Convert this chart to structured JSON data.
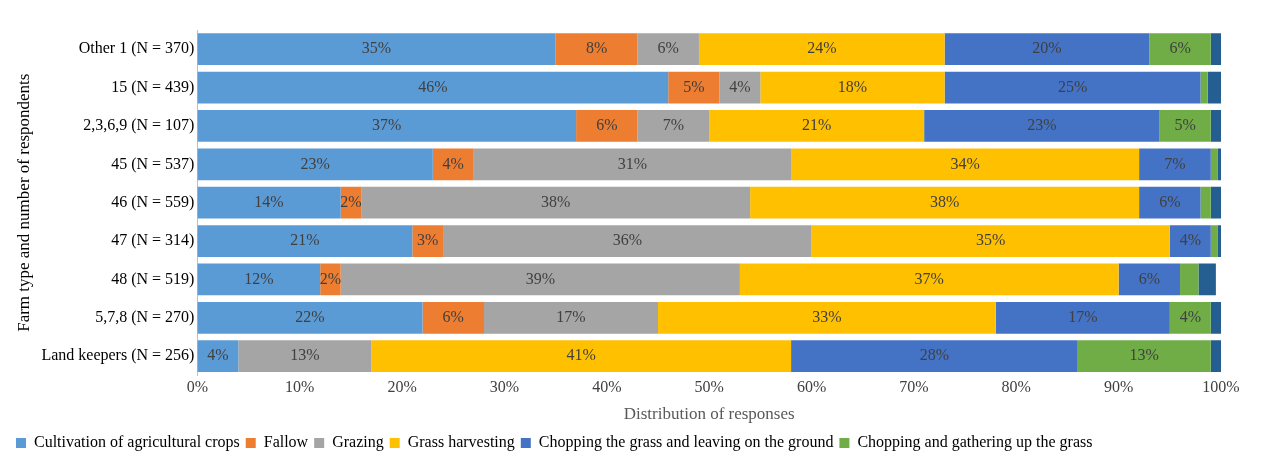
{
  "chart_data": {
    "type": "bar",
    "orientation": "horizontal",
    "stacked": true,
    "xlabel": "Distribution of responses",
    "ylabel": "Farm type and number of respondents",
    "categories": [
      "Other 1 (N = 370)",
      "15 (N = 439)",
      "2,3,6,9 (N = 107)",
      "45 (N = 537)",
      "46 (N = 559)",
      "47 (N = 314)",
      "48 (N = 519)",
      "5,7,8 (N = 270)",
      "Land keepers (N = 256)"
    ],
    "xlim": [
      0,
      100
    ],
    "xticks": [
      {
        "value": 0,
        "label": "0%"
      },
      {
        "value": 10,
        "label": "10%"
      },
      {
        "value": 20,
        "label": "20%"
      },
      {
        "value": 30,
        "label": "30%"
      },
      {
        "value": 40,
        "label": "40%"
      },
      {
        "value": 50,
        "label": "50%"
      },
      {
        "value": 60,
        "label": "60%"
      },
      {
        "value": 70,
        "label": "70%"
      },
      {
        "value": 80,
        "label": "80%"
      },
      {
        "value": 90,
        "label": "90%"
      },
      {
        "value": 100,
        "label": "100%"
      }
    ],
    "grid": false,
    "legend": "bottom",
    "series": [
      {
        "name": "Cultivation of agricultural crops",
        "color": "#5b9bd5",
        "values": [
          35,
          46,
          37,
          23,
          14,
          21,
          12,
          22,
          4
        ],
        "value_labels": [
          "35%",
          "46%",
          "37%",
          "23%",
          "14%",
          "21%",
          "12%",
          "22%",
          "4%"
        ]
      },
      {
        "name": "Fallow",
        "color": "#ed7d31",
        "values": [
          8,
          5,
          6,
          4,
          2,
          3,
          2,
          6,
          0
        ],
        "value_labels": [
          "8%",
          "5%",
          "6%",
          "4%",
          "2%",
          "3%",
          "2%",
          "6%",
          null
        ]
      },
      {
        "name": "Grazing",
        "color": "#a5a5a5",
        "values": [
          6,
          4,
          7,
          31,
          38,
          36,
          39,
          17,
          13
        ],
        "value_labels": [
          "6%",
          "4%",
          "7%",
          "31%",
          "38%",
          "36%",
          "39%",
          "17%",
          "13%"
        ]
      },
      {
        "name": "Grass harvesting",
        "color": "#ffc000",
        "values": [
          24,
          18,
          21,
          34,
          38,
          35,
          37,
          33,
          41
        ],
        "value_labels": [
          "24%",
          "18%",
          "21%",
          "34%",
          "38%",
          "35%",
          "37%",
          "33%",
          "41%"
        ]
      },
      {
        "name": "Chopping the grass and leaving on the ground",
        "color": "#4472c4",
        "values": [
          20,
          25,
          23,
          7,
          6,
          4,
          6,
          17,
          28
        ],
        "value_labels": [
          "20%",
          "25%",
          "23%",
          "7%",
          "6%",
          "4%",
          "6%",
          "17%",
          "28%"
        ]
      },
      {
        "name": "Chopping and gathering up the grass",
        "color": "#70ad47",
        "values": [
          6,
          0.7,
          5,
          0.7,
          1,
          0.7,
          1.8,
          4,
          13
        ],
        "value_labels": [
          "6%",
          null,
          "5%",
          null,
          null,
          null,
          null,
          "4%",
          "13%"
        ]
      },
      {
        "color": "#255e91",
        "values": [
          1,
          1.3,
          1,
          0.3,
          1,
          0.3,
          1.7,
          1,
          1
        ],
        "value_labels": [
          null,
          null,
          null,
          null,
          null,
          null,
          null,
          null,
          null
        ]
      }
    ]
  }
}
